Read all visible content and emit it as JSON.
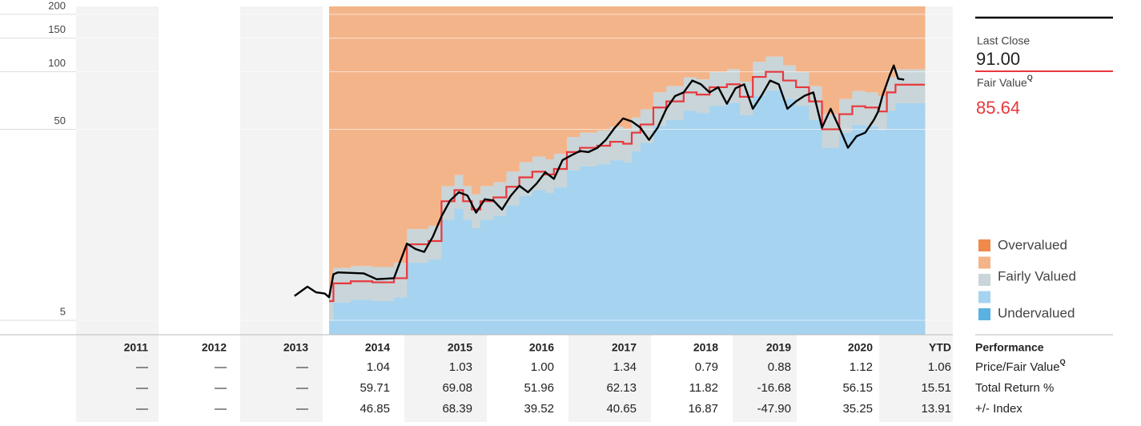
{
  "chart_data": {
    "type": "line",
    "log_scale": true,
    "grid": true,
    "ylim": [
      4.2,
      220
    ],
    "yticks": [
      5,
      50,
      100,
      150,
      200
    ],
    "xlim": [
      2011,
      2021
    ],
    "price": {
      "name": "Last Close",
      "color": "#000000",
      "x": [
        2013.6,
        2013.75,
        2013.85,
        2013.95,
        2014.0,
        2014.05,
        2014.1,
        2014.4,
        2014.55,
        2014.75,
        2014.9,
        2015.0,
        2015.1,
        2015.2,
        2015.3,
        2015.4,
        2015.5,
        2015.6,
        2015.7,
        2015.8,
        2015.9,
        2016.0,
        2016.1,
        2016.2,
        2016.3,
        2016.4,
        2016.5,
        2016.6,
        2016.7,
        2016.8,
        2016.9,
        2017.0,
        2017.1,
        2017.2,
        2017.3,
        2017.4,
        2017.5,
        2017.6,
        2017.7,
        2017.8,
        2017.9,
        2018.0,
        2018.1,
        2018.2,
        2018.3,
        2018.4,
        2018.5,
        2018.6,
        2018.7,
        2018.8,
        2018.9,
        2019.0,
        2019.1,
        2019.2,
        2019.3,
        2019.4,
        2019.5,
        2019.6,
        2019.7,
        2019.8,
        2019.9,
        2020.0,
        2020.1,
        2020.2,
        2020.3,
        2020.35,
        2020.4,
        2020.48,
        2020.53,
        2020.58,
        2020.65
      ],
      "values": [
        6.7,
        7.5,
        7.0,
        6.9,
        6.6,
        8.7,
        8.9,
        8.8,
        8.2,
        8.3,
        12.6,
        11.8,
        11.4,
        13.7,
        17.5,
        21.2,
        23.4,
        22.5,
        18.3,
        21.5,
        21.2,
        19.0,
        22.4,
        25.3,
        23.4,
        26,
        29.8,
        27.5,
        34.5,
        36.5,
        38.5,
        38,
        39.9,
        44,
        50.7,
        57,
        55,
        51,
        44,
        51,
        64,
        74.6,
        78,
        90,
        86,
        78,
        83,
        68,
        82,
        86,
        64,
        75,
        90,
        86,
        64,
        70,
        75,
        78,
        51,
        64,
        51,
        40,
        46,
        48,
        56,
        62,
        75,
        95,
        108,
        92,
        91
      ]
    },
    "fair_value": {
      "name": "Fair Value",
      "color": "#e8383d",
      "x": [
        2014.0,
        2014.05,
        2014.25,
        2014.5,
        2014.75,
        2014.9,
        2015.15,
        2015.3,
        2015.45,
        2015.55,
        2015.65,
        2015.75,
        2015.9,
        2016.05,
        2016.2,
        2016.35,
        2016.5,
        2016.6,
        2016.75,
        2016.9,
        2017.1,
        2017.25,
        2017.4,
        2017.5,
        2017.6,
        2017.75,
        2017.9,
        2018.1,
        2018.25,
        2018.4,
        2018.6,
        2018.75,
        2018.9,
        2019.05,
        2019.25,
        2019.4,
        2019.55,
        2019.7,
        2019.9,
        2020.05,
        2020.2,
        2020.35,
        2020.45,
        2020.55
      ],
      "values": [
        6.3,
        7.8,
        8.0,
        7.9,
        8.3,
        12.5,
        13,
        21,
        24,
        21,
        19,
        21,
        22,
        25,
        28,
        30,
        29,
        31,
        38,
        40,
        41,
        43,
        42,
        48,
        53,
        65,
        70,
        78,
        76,
        83,
        86,
        74,
        94,
        100,
        90,
        83,
        70,
        50,
        60,
        66,
        65,
        62,
        78,
        85.64
      ],
      "undervalued_top": [
        5.0,
        6.2,
        6.4,
        6.3,
        6.6,
        10,
        10.4,
        16.8,
        19.2,
        16.8,
        15.2,
        16.8,
        17.6,
        20,
        22.4,
        24,
        23.2,
        24.8,
        30.4,
        32,
        32.8,
        34.4,
        33.6,
        38.4,
        42.4,
        52,
        56,
        62.4,
        60.8,
        66.4,
        68.8,
        59.2,
        75.2,
        80,
        72,
        66.4,
        56,
        40,
        48,
        52.8,
        52,
        49.6,
        62.4,
        68.5
      ],
      "fairly_valued_top": [
        7.6,
        9.4,
        9.6,
        9.5,
        10,
        15,
        15.6,
        25.2,
        28.8,
        25.2,
        22.8,
        25.2,
        26.4,
        30,
        33.6,
        36,
        34.8,
        37.2,
        45.6,
        48,
        49.2,
        51.6,
        50.4,
        57.6,
        63.6,
        78,
        84,
        93.6,
        91.2,
        99.6,
        103.2,
        88.8,
        112.8,
        120,
        108,
        99.6,
        84,
        60,
        72,
        79.2,
        78,
        74.4,
        93.6,
        102.8
      ]
    },
    "legend": [
      {
        "name": "Overvalued",
        "color": "#ef8a4a"
      },
      {
        "name": null,
        "color": "#f4b48a"
      },
      {
        "name": "Fairly Valued",
        "color": "#c9d5d8"
      },
      {
        "name": null,
        "color": "#a6d3ef"
      },
      {
        "name": "Undervalued",
        "color": "#5ab1e2"
      }
    ]
  },
  "summary": {
    "last_close": "91.00",
    "fair_value": "85.64",
    "q_mark": "Q"
  },
  "table": {
    "header": "Performance",
    "columns": [
      "2011",
      "2012",
      "2013",
      "2014",
      "2015",
      "2016",
      "2017",
      "2018",
      "2019",
      "2020",
      "YTD"
    ],
    "rows": [
      {
        "label": "Price/Fair Value",
        "q": true,
        "cells": [
          "—",
          "—",
          "—",
          "1.04",
          "1.03",
          "1.00",
          "1.34",
          "0.79",
          "0.88",
          "1.12",
          "1.06"
        ]
      },
      {
        "label": "Total Return %",
        "q": false,
        "cells": [
          "—",
          "—",
          "—",
          "59.71",
          "69.08",
          "51.96",
          "62.13",
          "11.82",
          "-16.68",
          "56.15",
          "15.51"
        ]
      },
      {
        "label": "+/- Index",
        "q": false,
        "cells": [
          "—",
          "—",
          "—",
          "46.85",
          "68.39",
          "39.52",
          "40.65",
          "16.87",
          "-47.90",
          "35.25",
          "13.91"
        ]
      }
    ]
  }
}
